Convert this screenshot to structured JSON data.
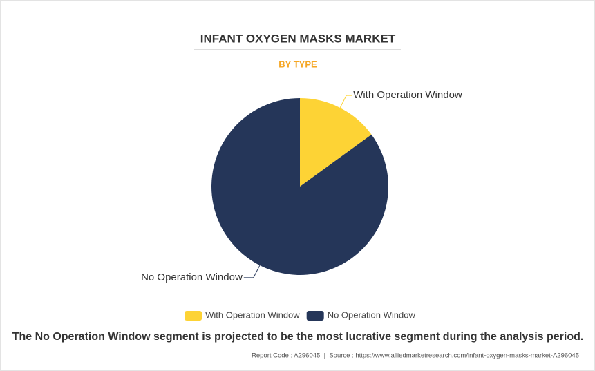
{
  "chart_data": {
    "type": "pie",
    "title": "INFANT OXYGEN MASKS MARKET",
    "subtitle": "BY TYPE",
    "categories": [
      "With Operation Window",
      "No Operation Window"
    ],
    "values": [
      15,
      85
    ],
    "colors": [
      "#fdd335",
      "#253659"
    ]
  },
  "footer": {
    "summary": "The No Operation Window segment is projected to be the most lucrative segment during the analysis period.",
    "source": "Report Code : A296045  |  Source : https://www.alliedmarketresearch.com/infant-oxygen-masks-market-A296045"
  }
}
